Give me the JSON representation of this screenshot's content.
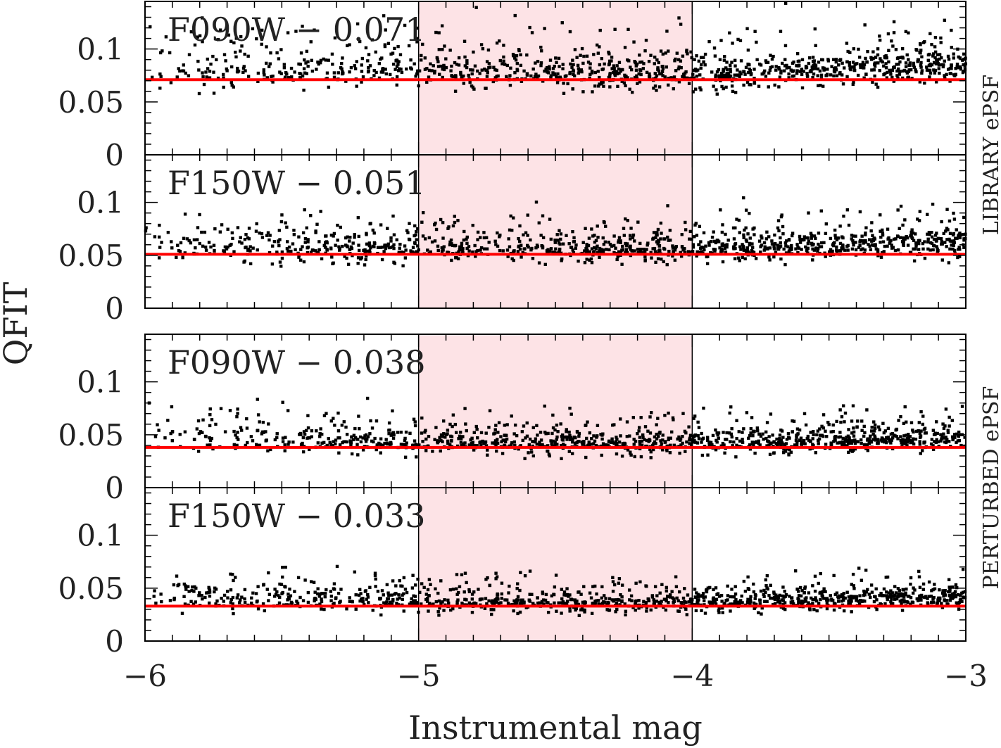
{
  "chart_data": {
    "type": "scatter",
    "xlabel": "Instrumental mag",
    "ylabel": "QFIT",
    "xlim": [
      -6,
      -3
    ],
    "ylim": [
      0,
      0.145
    ],
    "x_ticks": [
      "−6",
      "−5",
      "−4",
      "−3"
    ],
    "y_ticks": [
      "0",
      "0.05",
      "0.1"
    ],
    "highlight_band": {
      "x_range": [
        -5,
        -4
      ],
      "color": "#fde3e6"
    },
    "fit_line_color": "#ff0000",
    "point_color": "#000000",
    "groups": [
      {
        "label": "LIBRARY ePSF",
        "panels": [
          0,
          1
        ]
      },
      {
        "label": "PERTURBED ePSF",
        "panels": [
          2,
          3
        ]
      }
    ],
    "panels": [
      {
        "filter": "F090W",
        "label": "F090W − 0.071",
        "median_qfit": 0.071,
        "spread": 0.013,
        "trend": 0.012,
        "seed": 11
      },
      {
        "filter": "F150W",
        "label": "F150W − 0.051",
        "median_qfit": 0.051,
        "spread": 0.01,
        "trend": 0.01,
        "seed": 23
      },
      {
        "filter": "F090W",
        "label": "F090W − 0.038",
        "median_qfit": 0.038,
        "spread": 0.009,
        "trend": 0.008,
        "seed": 37
      },
      {
        "filter": "F150W",
        "label": "F150W − 0.033",
        "median_qfit": 0.033,
        "spread": 0.008,
        "trend": 0.008,
        "seed": 53
      }
    ]
  }
}
